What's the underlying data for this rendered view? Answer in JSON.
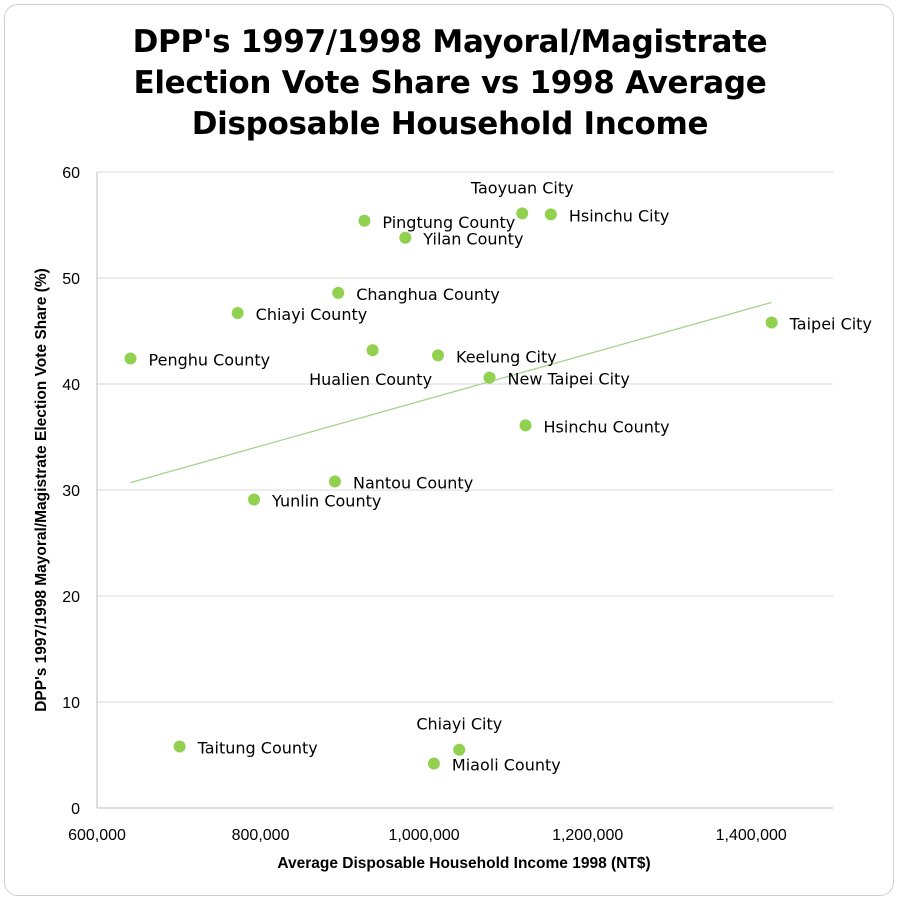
{
  "title_lines": [
    "DPP's 1997/1998 Mayoral/Magistrate",
    "Election Vote Share vs 1998 Average",
    "Disposable Household Income"
  ],
  "colors": {
    "point": "#92d050",
    "trendline": "#a9d18e",
    "grid": "#d9d9d9",
    "axis": "#bfbfbf"
  },
  "chart_data": {
    "type": "scatter",
    "title": "DPP's 1997/1998 Mayoral/Magistrate Election Vote Share vs 1998 Average Disposable Household Income",
    "xlabel": "Average Disposable Household Income 1998 (NT$)",
    "ylabel": "DPP's 1997/1998 Mayoral/Magistrate Election Vote Share (%)",
    "xlim": [
      600000,
      1500000
    ],
    "ylim": [
      0,
      60
    ],
    "x_ticks": [
      600000,
      800000,
      1000000,
      1200000,
      1400000
    ],
    "x_tick_labels": [
      "600,000",
      "800,000",
      "1,000,000",
      "1,200,000",
      "1,400,000"
    ],
    "y_ticks": [
      0,
      10,
      20,
      30,
      40,
      50,
      60
    ],
    "y_tick_labels": [
      "0",
      "10",
      "20",
      "30",
      "40",
      "50",
      "60"
    ],
    "grid": "horizontal",
    "legend": "none",
    "points": [
      {
        "label": "Taoyuan City",
        "x": 1120000,
        "y": 56.1,
        "label_pos": "above"
      },
      {
        "label": "Hsinchu City",
        "x": 1155000,
        "y": 56.0,
        "label_pos": "right"
      },
      {
        "label": "Pingtung County",
        "x": 927000,
        "y": 55.4,
        "label_pos": "right"
      },
      {
        "label": "Yilan County",
        "x": 977000,
        "y": 53.8,
        "label_pos": "right"
      },
      {
        "label": "Changhua County",
        "x": 895000,
        "y": 48.6,
        "label_pos": "right"
      },
      {
        "label": "Chiayi County",
        "x": 772000,
        "y": 46.7,
        "label_pos": "right"
      },
      {
        "label": "Taipei City",
        "x": 1425000,
        "y": 45.8,
        "label_pos": "right"
      },
      {
        "label": "Penghu County",
        "x": 641000,
        "y": 42.4,
        "label_pos": "right"
      },
      {
        "label": "Hualien County",
        "x": 937000,
        "y": 43.2,
        "label_pos": "below-left"
      },
      {
        "label": "Keelung City",
        "x": 1017000,
        "y": 42.7,
        "label_pos": "right"
      },
      {
        "label": "New Taipei City",
        "x": 1080000,
        "y": 40.6,
        "label_pos": "right"
      },
      {
        "label": "Hsinchu County",
        "x": 1124000,
        "y": 36.1,
        "label_pos": "right"
      },
      {
        "label": "Nantou County",
        "x": 891000,
        "y": 30.8,
        "label_pos": "right"
      },
      {
        "label": "Yunlin County",
        "x": 792000,
        "y": 29.1,
        "label_pos": "right"
      },
      {
        "label": "Taitung County",
        "x": 701000,
        "y": 5.8,
        "label_pos": "right"
      },
      {
        "label": "Chiayi City",
        "x": 1043000,
        "y": 5.5,
        "label_pos": "above"
      },
      {
        "label": "Miaoli County",
        "x": 1012000,
        "y": 4.2,
        "label_pos": "right"
      }
    ],
    "trendline": {
      "type": "linear",
      "x_start": 641000,
      "y_start": 30.7,
      "x_end": 1425000,
      "y_end": 47.7
    }
  }
}
